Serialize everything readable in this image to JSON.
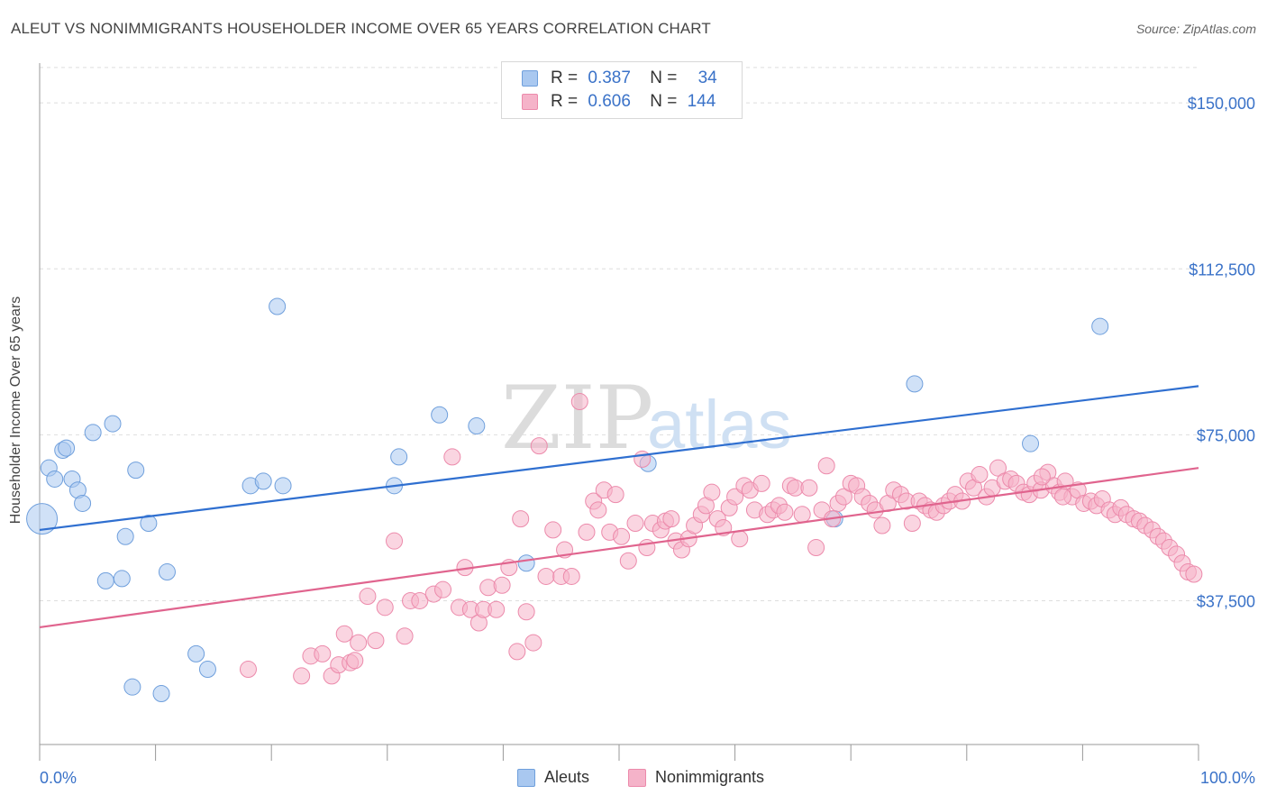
{
  "title": "ALEUT VS NONIMMIGRANTS HOUSEHOLDER INCOME OVER 65 YEARS CORRELATION CHART",
  "source": "Source: ZipAtlas.com",
  "watermark": {
    "zip": "ZIP",
    "atlas": "atlas"
  },
  "legend": {
    "rows": [
      {
        "r_label": "R =",
        "r_value": "0.387",
        "n_label": "N =",
        "n_value": "34",
        "color": "#a9c8f0"
      },
      {
        "r_label": "R =",
        "r_value": "0.606",
        "n_label": "N =",
        "n_value": "144",
        "color": "#f5b3c9"
      }
    ]
  },
  "chart_data": {
    "type": "scatter",
    "title": "ALEUT VS NONIMMIGRANTS HOUSEHOLDER INCOME OVER 65 YEARS CORRELATION CHART",
    "xlabel": "",
    "ylabel": "Householder Income Over 65 years",
    "xlim": [
      0,
      100
    ],
    "ylim": [
      5000,
      159000
    ],
    "x_tick_labels": [
      "0.0%",
      "100.0%"
    ],
    "y_ticks": [
      37500,
      75000,
      112500,
      150000
    ],
    "y_tick_labels": [
      "$37,500",
      "$75,000",
      "$112,500",
      "$150,000"
    ],
    "grid": true,
    "legend_position": "top-center",
    "series": [
      {
        "name": "Aleuts",
        "color": "#a9c8f0",
        "stroke": "#6f9fdc",
        "trend": {
          "x": [
            0,
            100
          ],
          "y": [
            53500,
            86000
          ],
          "color": "#2f6fd0"
        },
        "points": [
          [
            0.2,
            56000,
            16
          ],
          [
            0.8,
            67500,
            8
          ],
          [
            1.3,
            65000,
            8
          ],
          [
            2.0,
            71500,
            8
          ],
          [
            2.3,
            72000,
            8
          ],
          [
            2.8,
            65000,
            8
          ],
          [
            3.3,
            62500,
            8
          ],
          [
            3.7,
            59500,
            8
          ],
          [
            4.6,
            75500,
            8
          ],
          [
            5.7,
            42000,
            8
          ],
          [
            6.3,
            77500,
            8
          ],
          [
            7.1,
            42500,
            8
          ],
          [
            7.4,
            52000,
            8
          ],
          [
            8.3,
            67000,
            8
          ],
          [
            9.4,
            55000,
            8
          ],
          [
            10.5,
            16500,
            8
          ],
          [
            11.0,
            44000,
            8
          ],
          [
            13.5,
            25500,
            8
          ],
          [
            14.5,
            22000,
            8
          ],
          [
            18.2,
            63500,
            8
          ],
          [
            19.3,
            64500,
            8
          ],
          [
            20.5,
            104000,
            8
          ],
          [
            21.0,
            63500,
            8
          ],
          [
            30.6,
            63500,
            8
          ],
          [
            31.0,
            70000,
            8
          ],
          [
            34.5,
            79500,
            8
          ],
          [
            37.7,
            77000,
            8
          ],
          [
            42.0,
            46000,
            8
          ],
          [
            52.5,
            68500,
            8
          ],
          [
            68.6,
            56000,
            8
          ],
          [
            75.5,
            86500,
            8
          ],
          [
            85.5,
            73000,
            8
          ],
          [
            91.5,
            99500,
            8
          ],
          [
            8.0,
            18000,
            8
          ]
        ]
      },
      {
        "name": "Nonimmigrants",
        "color": "#f5b3c9",
        "stroke": "#ec8aab",
        "trend": {
          "x": [
            0,
            100
          ],
          "y": [
            31500,
            67500
          ],
          "color": "#e0648e"
        },
        "points": [
          [
            18.0,
            22000,
            8
          ],
          [
            22.6,
            20500,
            8
          ],
          [
            23.4,
            25000,
            8
          ],
          [
            24.4,
            25500,
            8
          ],
          [
            25.2,
            20500,
            8
          ],
          [
            25.8,
            23000,
            8
          ],
          [
            26.3,
            30000,
            8
          ],
          [
            26.8,
            23500,
            8
          ],
          [
            27.2,
            24000,
            8
          ],
          [
            27.5,
            28000,
            8
          ],
          [
            28.3,
            38500,
            8
          ],
          [
            29.0,
            28500,
            8
          ],
          [
            29.8,
            36000,
            8
          ],
          [
            30.6,
            51000,
            8
          ],
          [
            31.5,
            29500,
            8
          ],
          [
            32.0,
            37500,
            8
          ],
          [
            32.8,
            37500,
            8
          ],
          [
            34.0,
            39000,
            8
          ],
          [
            34.8,
            40000,
            8
          ],
          [
            35.6,
            70000,
            8
          ],
          [
            36.2,
            36000,
            8
          ],
          [
            36.7,
            45000,
            8
          ],
          [
            37.2,
            35500,
            8
          ],
          [
            37.9,
            32500,
            8
          ],
          [
            38.3,
            35500,
            8
          ],
          [
            38.7,
            40500,
            8
          ],
          [
            39.4,
            35500,
            8
          ],
          [
            39.9,
            41000,
            8
          ],
          [
            40.5,
            45000,
            8
          ],
          [
            41.2,
            26000,
            8
          ],
          [
            41.5,
            56000,
            8
          ],
          [
            42.0,
            35000,
            8
          ],
          [
            42.6,
            28000,
            8
          ],
          [
            43.1,
            72500,
            8
          ],
          [
            43.7,
            43000,
            8
          ],
          [
            44.3,
            53500,
            8
          ],
          [
            45.0,
            43000,
            8
          ],
          [
            45.3,
            49000,
            8
          ],
          [
            45.9,
            43000,
            8
          ],
          [
            46.6,
            82500,
            8
          ],
          [
            47.2,
            53000,
            8
          ],
          [
            47.8,
            60000,
            8
          ],
          [
            48.2,
            58000,
            8
          ],
          [
            48.7,
            62500,
            8
          ],
          [
            49.2,
            53000,
            8
          ],
          [
            49.7,
            61500,
            8
          ],
          [
            50.2,
            52000,
            8
          ],
          [
            50.8,
            46500,
            8
          ],
          [
            51.4,
            55000,
            8
          ],
          [
            52.0,
            69500,
            8
          ],
          [
            52.4,
            49500,
            8
          ],
          [
            52.9,
            55000,
            8
          ],
          [
            53.6,
            53500,
            8
          ],
          [
            54.0,
            55500,
            8
          ],
          [
            54.5,
            56000,
            8
          ],
          [
            54.9,
            51000,
            8
          ],
          [
            55.4,
            49000,
            8
          ],
          [
            56.0,
            51500,
            8
          ],
          [
            56.5,
            54500,
            8
          ],
          [
            57.1,
            57000,
            8
          ],
          [
            57.5,
            59000,
            8
          ],
          [
            58.0,
            62000,
            8
          ],
          [
            58.5,
            56000,
            8
          ],
          [
            59.0,
            54000,
            8
          ],
          [
            59.5,
            58500,
            8
          ],
          [
            60.0,
            61000,
            8
          ],
          [
            60.4,
            51500,
            8
          ],
          [
            60.8,
            63500,
            8
          ],
          [
            61.3,
            62500,
            8
          ],
          [
            61.7,
            58000,
            8
          ],
          [
            62.3,
            64000,
            8
          ],
          [
            62.8,
            57000,
            8
          ],
          [
            63.3,
            58000,
            8
          ],
          [
            63.8,
            59000,
            8
          ],
          [
            64.3,
            57500,
            8
          ],
          [
            64.8,
            63500,
            8
          ],
          [
            65.2,
            63000,
            8
          ],
          [
            65.8,
            57000,
            8
          ],
          [
            66.4,
            63000,
            8
          ],
          [
            67.0,
            49500,
            8
          ],
          [
            67.5,
            58000,
            8
          ],
          [
            67.9,
            68000,
            8
          ],
          [
            68.4,
            56000,
            8
          ],
          [
            68.9,
            59500,
            8
          ],
          [
            69.4,
            61000,
            8
          ],
          [
            70.0,
            64000,
            8
          ],
          [
            70.5,
            63500,
            8
          ],
          [
            71.0,
            61000,
            8
          ],
          [
            71.6,
            59500,
            8
          ],
          [
            72.1,
            58000,
            8
          ],
          [
            72.7,
            54500,
            8
          ],
          [
            73.2,
            59500,
            8
          ],
          [
            73.7,
            62500,
            8
          ],
          [
            74.3,
            61500,
            8
          ],
          [
            74.8,
            60000,
            8
          ],
          [
            75.3,
            55000,
            8
          ],
          [
            75.9,
            60000,
            8
          ],
          [
            76.4,
            59000,
            8
          ],
          [
            76.9,
            58000,
            8
          ],
          [
            77.4,
            57500,
            8
          ],
          [
            78.0,
            59000,
            8
          ],
          [
            78.5,
            60000,
            8
          ],
          [
            79.0,
            61500,
            8
          ],
          [
            79.6,
            60000,
            8
          ],
          [
            80.1,
            64500,
            8
          ],
          [
            80.6,
            63000,
            8
          ],
          [
            81.1,
            66000,
            8
          ],
          [
            81.7,
            61000,
            8
          ],
          [
            82.2,
            63000,
            8
          ],
          [
            82.7,
            67500,
            8
          ],
          [
            83.3,
            64500,
            8
          ],
          [
            83.8,
            65000,
            8
          ],
          [
            84.3,
            64000,
            8
          ],
          [
            84.9,
            62000,
            8
          ],
          [
            85.4,
            61500,
            8
          ],
          [
            85.9,
            64000,
            8
          ],
          [
            86.4,
            62500,
            8
          ],
          [
            87.0,
            66500,
            8
          ],
          [
            87.5,
            63500,
            8
          ],
          [
            88.0,
            62000,
            8
          ],
          [
            88.5,
            64500,
            8
          ],
          [
            89.1,
            61000,
            8
          ],
          [
            89.6,
            62500,
            8
          ],
          [
            90.1,
            59500,
            8
          ],
          [
            90.7,
            60000,
            8
          ],
          [
            91.2,
            59000,
            8
          ],
          [
            91.7,
            60500,
            8
          ],
          [
            92.3,
            58000,
            8
          ],
          [
            92.8,
            57000,
            8
          ],
          [
            93.3,
            58500,
            8
          ],
          [
            93.8,
            57000,
            8
          ],
          [
            94.4,
            56000,
            8
          ],
          [
            94.9,
            55500,
            8
          ],
          [
            95.4,
            54500,
            8
          ],
          [
            96.0,
            53500,
            8
          ],
          [
            96.5,
            52000,
            8
          ],
          [
            97.0,
            51000,
            8
          ],
          [
            97.5,
            49500,
            8
          ],
          [
            98.1,
            48000,
            8
          ],
          [
            98.6,
            46000,
            8
          ],
          [
            99.1,
            44000,
            8
          ],
          [
            99.6,
            43500,
            8
          ],
          [
            86.5,
            65500,
            8
          ],
          [
            88.3,
            61000,
            8
          ]
        ]
      }
    ]
  },
  "bottom_legend": {
    "items": [
      {
        "label": "Aleuts",
        "color": "#a9c8f0"
      },
      {
        "label": "Nonimmigrants",
        "color": "#f5b3c9"
      }
    ]
  }
}
